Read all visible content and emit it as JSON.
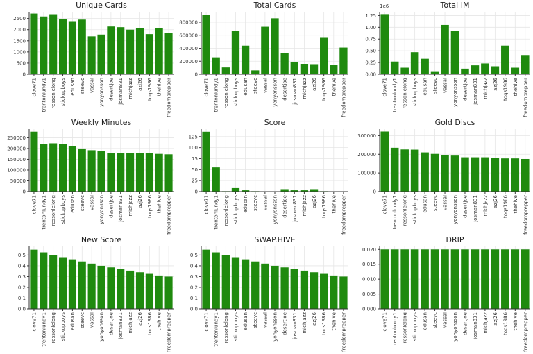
{
  "color": "#1f8a0e",
  "categories": [
    "clove71",
    "trentonlundy1",
    "ressonlelong",
    "stickupboys",
    "edusan",
    "steevc",
    "vassal",
    "yonyonsson",
    "desertjoe",
    "josman831",
    "michjazz",
    "azj26",
    "toqs1986",
    "thehive",
    "freedomprepper"
  ],
  "chart_data": [
    {
      "type": "bar",
      "title": "Unique Cards",
      "ylim": [
        0,
        2800
      ],
      "yticks": [
        0,
        500,
        1000,
        1500,
        2000,
        2500
      ],
      "ytick_labels": [
        "0",
        "500",
        "1000",
        "1500",
        "2000",
        "2500"
      ],
      "values": [
        2720,
        2590,
        2690,
        2470,
        2380,
        2450,
        1700,
        1780,
        2140,
        2110,
        2000,
        2080,
        1800,
        2060,
        1860
      ]
    },
    {
      "type": "bar",
      "title": "Total Cards",
      "ylim": [
        0,
        960000
      ],
      "yticks": [
        0,
        200000,
        400000,
        600000,
        800000
      ],
      "ytick_labels": [
        "0",
        "200000",
        "400000",
        "600000",
        "800000"
      ],
      "values": [
        910000,
        260000,
        105000,
        670000,
        440000,
        60000,
        730000,
        860000,
        330000,
        190000,
        160000,
        155000,
        560000,
        140000,
        410000
      ]
    },
    {
      "type": "bar",
      "title": "Total IM",
      "ylim": [
        0,
        1.33
      ],
      "offset_label": "1e6",
      "yticks": [
        0,
        0.25,
        0.5,
        0.75,
        1.0,
        1.25
      ],
      "ytick_labels": [
        "0.00",
        "0.25",
        "0.50",
        "0.75",
        "1.00",
        "1.25"
      ],
      "values": [
        1.28,
        0.27,
        0.14,
        0.47,
        0.33,
        0.05,
        1.05,
        0.92,
        0.12,
        0.19,
        0.23,
        0.17,
        0.61,
        0.14,
        0.41
      ]
    },
    {
      "type": "bar",
      "title": "Weekly Minutes",
      "ylim": [
        0,
        290000
      ],
      "yticks": [
        0,
        50000,
        100000,
        150000,
        200000,
        250000
      ],
      "ytick_labels": [
        "0",
        "50000",
        "100000",
        "150000",
        "200000",
        "250000"
      ],
      "values": [
        278000,
        222000,
        224000,
        222000,
        210000,
        200000,
        192000,
        190000,
        180000,
        180000,
        180000,
        178000,
        178000,
        175000,
        173000
      ]
    },
    {
      "type": "bar",
      "title": "Score",
      "ylim": [
        0,
        142
      ],
      "yticks": [
        0,
        25,
        50,
        75,
        100,
        125
      ],
      "ytick_labels": [
        "0",
        "25",
        "50",
        "75",
        "100",
        "125"
      ],
      "values": [
        136,
        55,
        1,
        8,
        3,
        1,
        0,
        0,
        4,
        3,
        3,
        4,
        1,
        0,
        0
      ]
    },
    {
      "type": "bar",
      "title": "Gold Discs",
      "ylim": [
        0,
        335000
      ],
      "yticks": [
        0,
        100000,
        200000,
        300000
      ],
      "ytick_labels": [
        "0",
        "100000",
        "200000",
        "300000"
      ],
      "values": [
        322000,
        235000,
        226000,
        225000,
        210000,
        202000,
        195000,
        193000,
        184000,
        184000,
        184000,
        180000,
        178000,
        178000,
        175000
      ]
    },
    {
      "type": "bar",
      "title": "New Score",
      "ylim": [
        0,
        0.58
      ],
      "yticks": [
        0,
        0.1,
        0.2,
        0.3,
        0.4,
        0.5
      ],
      "ytick_labels": [
        "0.0",
        "0.1",
        "0.2",
        "0.3",
        "0.4",
        "0.5"
      ],
      "values": [
        0.55,
        0.525,
        0.5,
        0.48,
        0.46,
        0.44,
        0.42,
        0.4,
        0.385,
        0.37,
        0.355,
        0.34,
        0.325,
        0.31,
        0.3
      ]
    },
    {
      "type": "bar",
      "title": "SWAP.HIVE",
      "ylim": [
        0,
        0.58
      ],
      "yticks": [
        0,
        0.1,
        0.2,
        0.3,
        0.4,
        0.5
      ],
      "ytick_labels": [
        "0.0",
        "0.1",
        "0.2",
        "0.3",
        "0.4",
        "0.5"
      ],
      "values": [
        0.55,
        0.525,
        0.5,
        0.48,
        0.46,
        0.44,
        0.42,
        0.4,
        0.385,
        0.37,
        0.355,
        0.34,
        0.325,
        0.31,
        0.3
      ]
    },
    {
      "type": "bar",
      "title": "DRIP",
      "ylim": [
        0,
        0.021
      ],
      "yticks": [
        0,
        0.005,
        0.01,
        0.015,
        0.02
      ],
      "ytick_labels": [
        "0.000",
        "0.005",
        "0.010",
        "0.015",
        "0.020"
      ],
      "values": [
        0.02,
        0.02,
        0.02,
        0.02,
        0.02,
        0.02,
        0.02,
        0.02,
        0.02,
        0.02,
        0.02,
        0.02,
        0.02,
        0.02,
        0.02
      ]
    }
  ]
}
